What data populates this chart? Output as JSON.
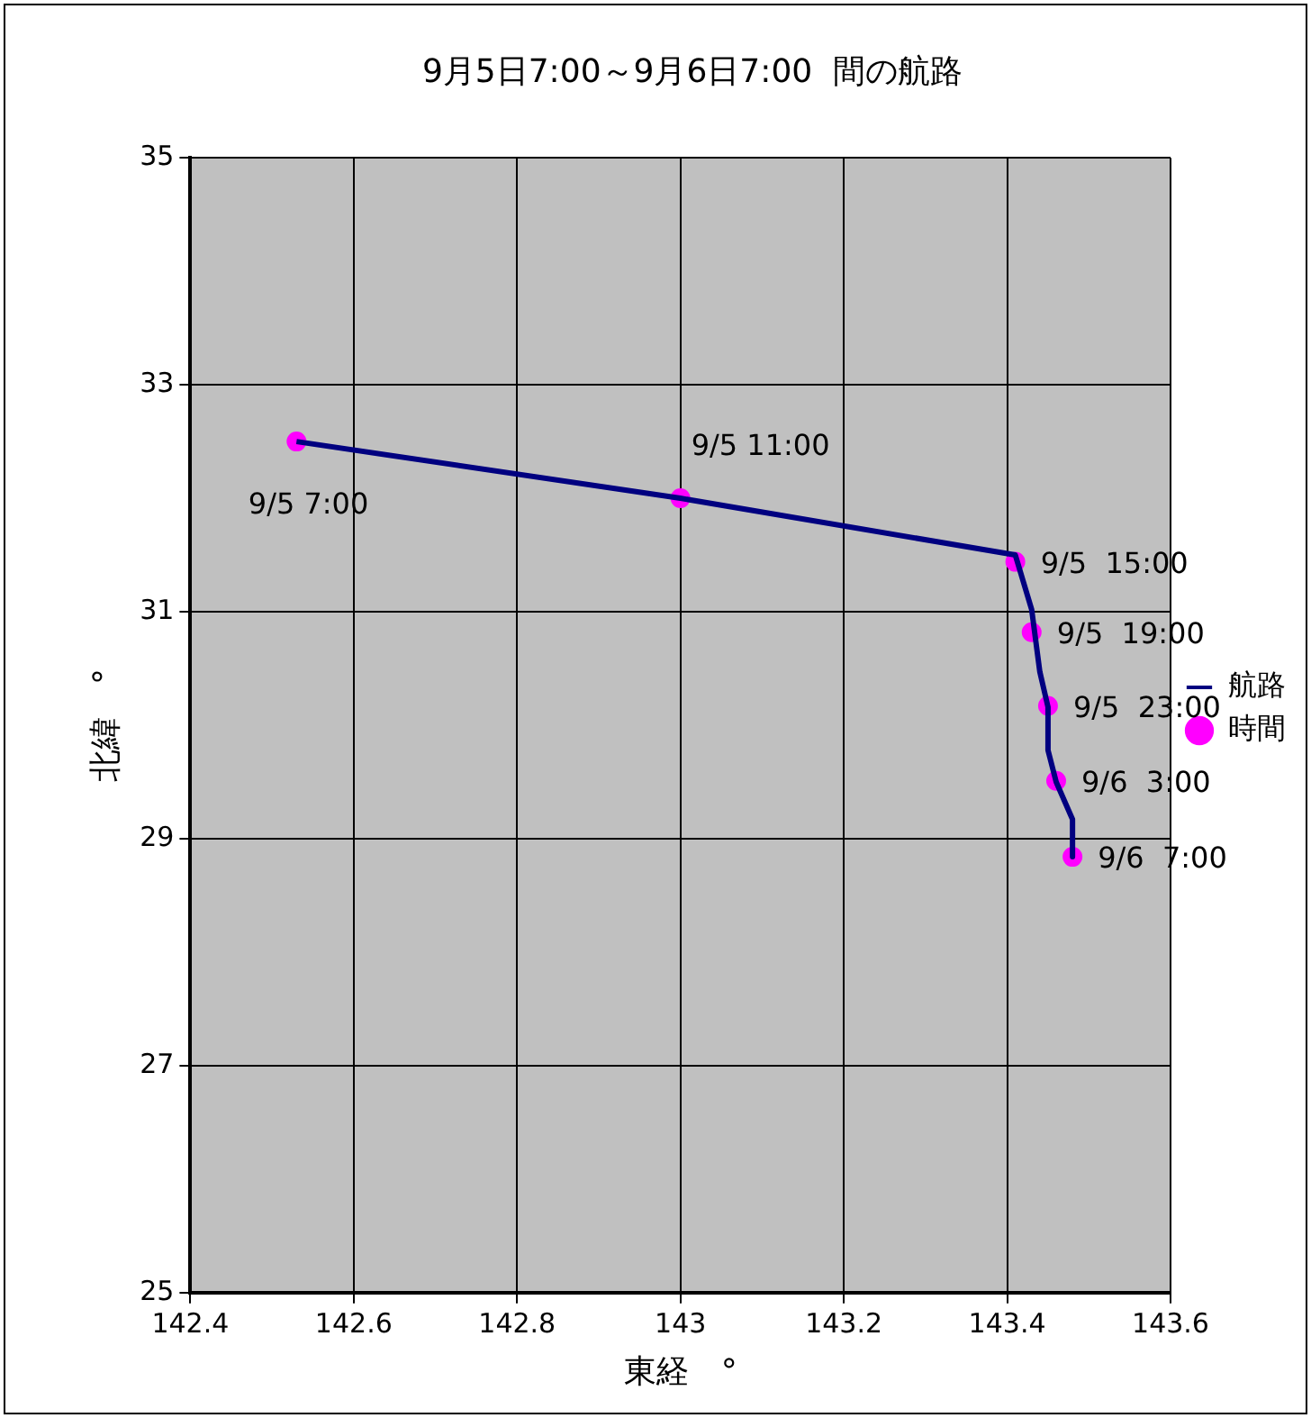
{
  "chart_data": {
    "type": "line",
    "title": "9月5日7:00～9月6日7:00  間の航路",
    "xlabel": "東経　°",
    "ylabel": "北緯　°",
    "xlim": [
      142.4,
      143.6
    ],
    "xticks": [
      142.4,
      142.6,
      142.8,
      143,
      143.2,
      143.4,
      143.6
    ],
    "ylim": [
      25,
      35
    ],
    "yticks": [
      25,
      27,
      29,
      31,
      33,
      35
    ],
    "grid": true,
    "legend": "right",
    "series": [
      {
        "name": "航路",
        "color": "#000080",
        "marker": "none",
        "x": [
          142.53,
          143.0,
          143.41,
          143.43,
          143.44,
          143.45,
          143.45,
          143.45,
          143.46,
          143.48,
          143.48,
          143.48
        ],
        "values": [
          32.5,
          32.0,
          31.5,
          31.02,
          30.47,
          30.16,
          30.07,
          29.78,
          29.5,
          29.17,
          29.0,
          28.84
        ]
      },
      {
        "name": "時間",
        "type": "scatter",
        "color": "#ff00ff",
        "marker": "circle",
        "x": [
          142.53,
          143.0,
          143.41,
          143.43,
          143.45,
          143.46,
          143.48
        ],
        "values": [
          32.5,
          32.0,
          31.44,
          30.82,
          30.17,
          29.51,
          28.84
        ]
      }
    ],
    "annotations": [
      {
        "text": "9/5 7:00",
        "x": 142.53,
        "y": 32.5
      },
      {
        "text": "9/5 11:00",
        "x": 143.0,
        "y": 32.0
      },
      {
        "text": "9/5  15:00",
        "x": 143.41,
        "y": 31.44
      },
      {
        "text": "9/5  19:00",
        "x": 143.43,
        "y": 30.82
      },
      {
        "text": "9/5  23:00",
        "x": 143.45,
        "y": 30.17
      },
      {
        "text": "9/6  3:00",
        "x": 143.46,
        "y": 29.51
      },
      {
        "text": "9/6  7:00",
        "x": 143.48,
        "y": 28.84
      }
    ]
  }
}
